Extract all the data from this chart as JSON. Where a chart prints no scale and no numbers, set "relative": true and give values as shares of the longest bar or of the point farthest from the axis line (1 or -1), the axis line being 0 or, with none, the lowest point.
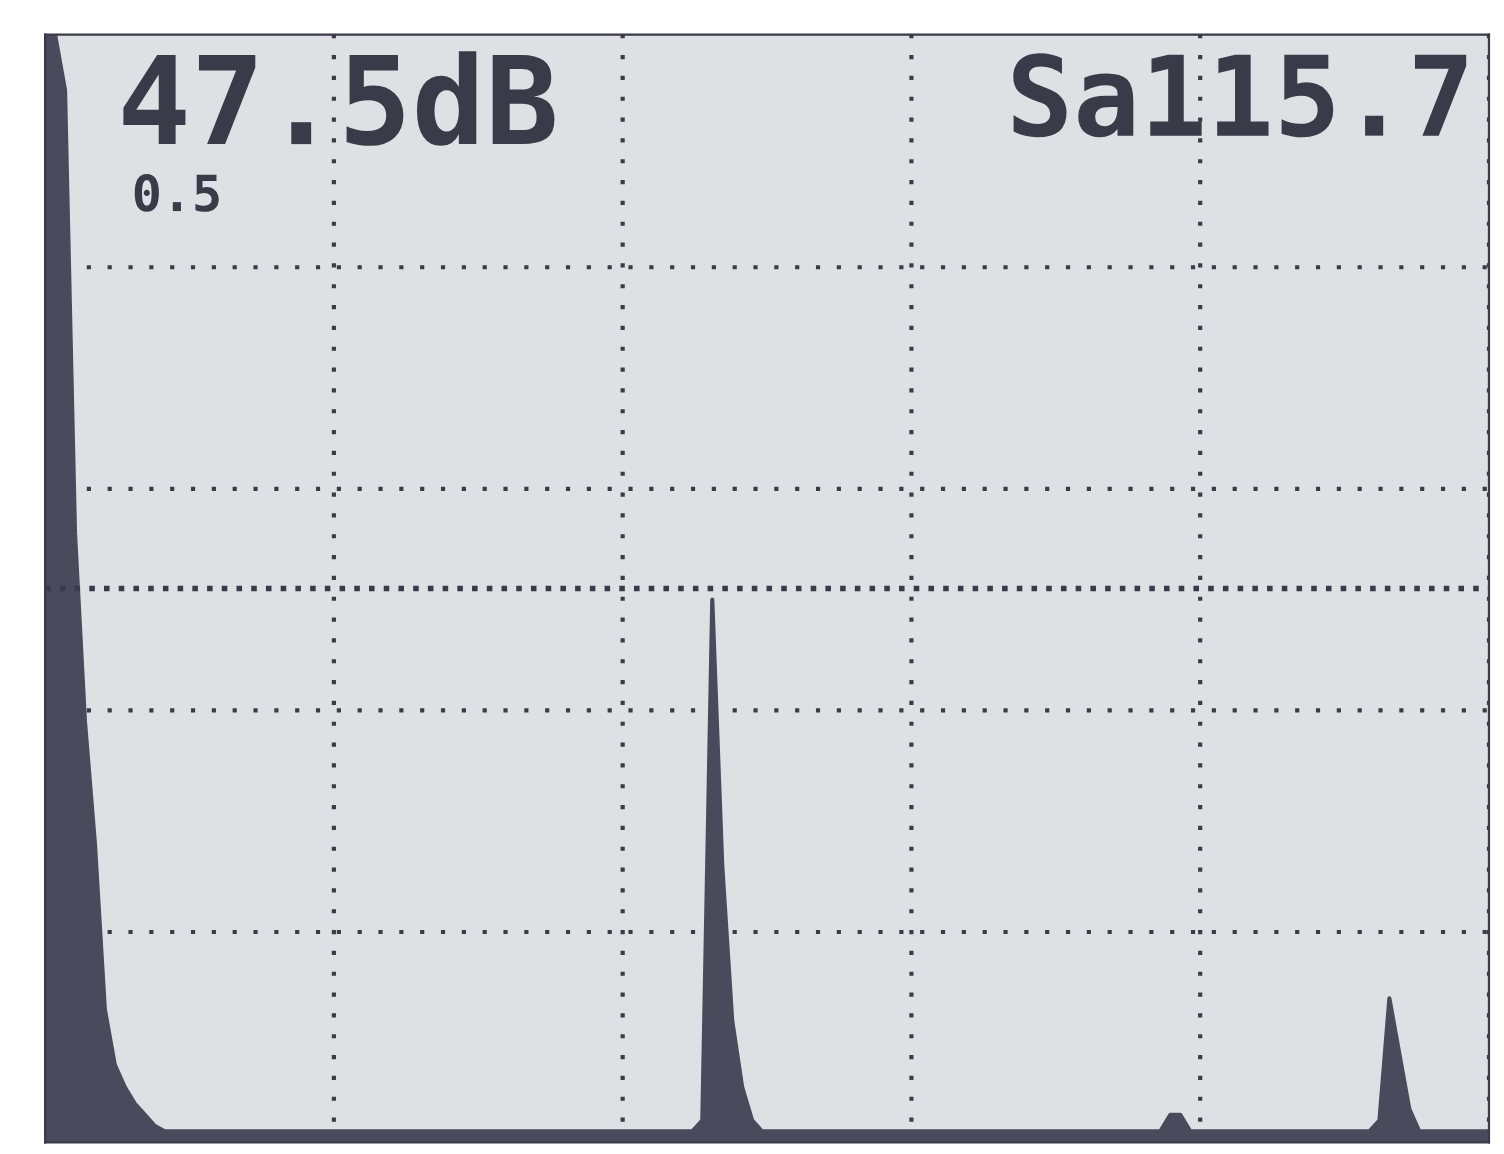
{
  "chart_data": {
    "type": "area",
    "relative": true,
    "grid": true,
    "tick_labels": false,
    "annotations": [
      "47.5dB",
      "Sa115.7",
      "0.5"
    ],
    "ref_lines": [
      {
        "axis": "y",
        "value": 0.5,
        "line_style": "dotted",
        "color": "#3a3a48"
      }
    ],
    "categories": [
      null,
      null,
      null,
      null,
      null,
      null,
      null,
      null,
      null,
      null,
      null,
      null,
      null,
      null,
      null,
      null,
      null,
      null,
      null,
      null,
      null,
      null,
      null,
      null,
      null,
      null,
      null,
      null,
      null,
      null,
      null,
      null,
      null,
      null,
      null,
      null,
      null,
      null,
      null,
      null,
      null,
      null,
      null,
      null,
      null,
      null,
      null,
      null,
      null,
      null,
      null,
      null,
      null,
      null,
      null,
      null,
      null,
      null,
      null,
      null,
      null,
      null,
      null,
      null,
      null,
      null,
      null,
      null,
      null,
      null,
      null,
      null,
      null,
      null,
      null,
      null,
      null,
      null,
      null,
      null,
      null,
      null,
      null,
      null,
      null,
      null,
      null,
      null,
      null,
      null,
      null,
      null,
      null,
      null,
      null,
      null,
      null,
      null,
      null,
      null,
      null,
      null,
      null,
      null,
      null,
      null,
      null,
      null,
      null,
      null,
      null,
      null,
      null,
      null,
      null,
      null,
      null,
      null,
      null,
      null,
      null,
      null,
      null,
      null,
      null,
      null,
      null,
      null,
      null,
      null,
      null,
      null,
      null,
      null,
      null,
      null,
      null,
      null,
      null,
      null,
      null,
      null,
      null,
      null,
      null,
      null
    ],
    "series": [
      {
        "color": "#4a4a5c",
        "values": [
          1.0,
          1.0,
          0.95,
          0.55,
          0.38,
          0.27,
          0.12,
          0.07,
          0.05,
          0.035,
          0.025,
          0.015,
          0.01,
          0.01,
          0.01,
          0.01,
          0.01,
          0.01,
          0.01,
          0.01,
          0.01,
          0.01,
          0.01,
          0.01,
          0.01,
          0.01,
          0.01,
          0.01,
          0.01,
          0.01,
          0.01,
          0.01,
          0.01,
          0.01,
          0.01,
          0.01,
          0.01,
          0.01,
          0.01,
          0.01,
          0.01,
          0.01,
          0.01,
          0.01,
          0.01,
          0.01,
          0.01,
          0.01,
          0.01,
          0.01,
          0.01,
          0.01,
          0.01,
          0.01,
          0.01,
          0.01,
          0.01,
          0.01,
          0.01,
          0.01,
          0.01,
          0.01,
          0.01,
          0.01,
          0.01,
          0.01,
          0.02,
          0.49,
          0.25,
          0.11,
          0.05,
          0.02,
          0.01,
          0.01,
          0.01,
          0.01,
          0.01,
          0.01,
          0.01,
          0.01,
          0.01,
          0.01,
          0.01,
          0.01,
          0.01,
          0.01,
          0.01,
          0.01,
          0.01,
          0.01,
          0.01,
          0.01,
          0.01,
          0.01,
          0.01,
          0.01,
          0.01,
          0.01,
          0.01,
          0.01,
          0.01,
          0.01,
          0.01,
          0.01,
          0.01,
          0.01,
          0.01,
          0.01,
          0.01,
          0.01,
          0.01,
          0.01,
          0.01,
          0.025,
          0.025,
          0.01,
          0.01,
          0.01,
          0.01,
          0.01,
          0.01,
          0.01,
          0.01,
          0.01,
          0.01,
          0.01,
          0.01,
          0.01,
          0.01,
          0.01,
          0.01,
          0.01,
          0.01,
          0.01,
          0.02,
          0.13,
          0.08,
          0.03,
          0.01,
          0.01,
          0.01,
          0.01,
          0.01,
          0.01,
          0.01,
          0.01
        ]
      }
    ]
  }
}
